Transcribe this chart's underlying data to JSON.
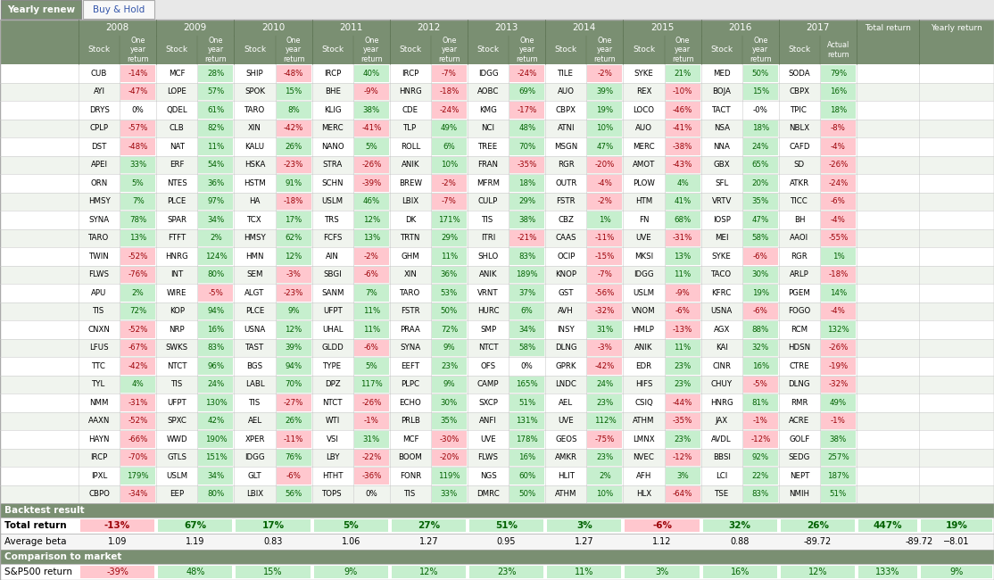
{
  "tab_yearly_renew": "Yearly renew",
  "tab_buy_hold": "Buy & Hold",
  "years": [
    "2008",
    "2009",
    "2010",
    "2011",
    "2012",
    "2013",
    "2014",
    "2015",
    "2016",
    "2017"
  ],
  "header_bg": "#7a8f72",
  "header_text": "#ffffff",
  "tab_active_bg": "#7a8f72",
  "tab_active_text": "#ffffff",
  "tab_inactive_bg": "#f0f0f0",
  "tab_inactive_text": "#3355aa",
  "section_bg": "#7a8f72",
  "section_text": "#ffffff",
  "positive_bg": "#c6efce",
  "negative_bg": "#ffc7ce",
  "positive_text": "#006100",
  "negative_text": "#9c0006",
  "neutral_text": "#000000",
  "row_bg_white": "#ffffff",
  "row_bg_gray": "#f0f4ee",
  "table_data": [
    [
      "CUB",
      "-14%",
      "MCF",
      "28%",
      "SHIP",
      "-48%",
      "IRCP",
      "40%",
      "IRCP",
      "-7%",
      "IDGG",
      "-24%",
      "TILE",
      "-2%",
      "SYKE",
      "21%",
      "MED",
      "50%",
      "SODA",
      "79%",
      "",
      ""
    ],
    [
      "AYI",
      "-47%",
      "LOPE",
      "57%",
      "SPOK",
      "15%",
      "BHE",
      "-9%",
      "HNRG",
      "-18%",
      "AOBC",
      "69%",
      "AUO",
      "39%",
      "REX",
      "-10%",
      "BOJA",
      "15%",
      "CBPX",
      "16%",
      "",
      ""
    ],
    [
      "DRYS",
      "0%",
      "QDEL",
      "61%",
      "TARO",
      "8%",
      "KLIG",
      "38%",
      "CDE",
      "-24%",
      "KMG",
      "-17%",
      "CBPX",
      "19%",
      "LOCO",
      "-46%",
      "TACT",
      "-0%",
      "TPIC",
      "18%",
      "",
      ""
    ],
    [
      "CPLP",
      "-57%",
      "CLB",
      "82%",
      "XIN",
      "-42%",
      "MERC",
      "-41%",
      "TLP",
      "49%",
      "NCI",
      "48%",
      "ATNI",
      "10%",
      "AUO",
      "-41%",
      "NSA",
      "18%",
      "NBLX",
      "-8%",
      "",
      ""
    ],
    [
      "DST",
      "-48%",
      "NAT",
      "11%",
      "KALU",
      "26%",
      "NANO",
      "5%",
      "ROLL",
      "6%",
      "TREE",
      "70%",
      "MSGN",
      "47%",
      "MERC",
      "-38%",
      "NNA",
      "24%",
      "CAFD",
      "-4%",
      "",
      ""
    ],
    [
      "APEI",
      "33%",
      "ERF",
      "54%",
      "HSKA",
      "-23%",
      "STRA",
      "-26%",
      "ANIK",
      "10%",
      "FRAN",
      "-35%",
      "RGR",
      "-20%",
      "AMOT",
      "-43%",
      "GBX",
      "65%",
      "SD",
      "-26%",
      "",
      ""
    ],
    [
      "ORN",
      "5%",
      "NTES",
      "36%",
      "HSTM",
      "91%",
      "SCHN",
      "-39%",
      "BREW",
      "-2%",
      "MFRM",
      "18%",
      "OUTR",
      "-4%",
      "PLOW",
      "4%",
      "SFL",
      "20%",
      "ATKR",
      "-24%",
      "",
      ""
    ],
    [
      "HMSY",
      "7%",
      "PLCE",
      "97%",
      "HA",
      "-18%",
      "USLM",
      "46%",
      "LBIX",
      "-7%",
      "CULP",
      "29%",
      "FSTR",
      "-2%",
      "HTM",
      "41%",
      "VRTV",
      "35%",
      "TICC",
      "-6%",
      "",
      ""
    ],
    [
      "SYNA",
      "78%",
      "SPAR",
      "34%",
      "TCX",
      "17%",
      "TRS",
      "12%",
      "DK",
      "171%",
      "TIS",
      "38%",
      "CBZ",
      "1%",
      "FN",
      "68%",
      "IOSP",
      "47%",
      "BH",
      "-4%",
      "",
      ""
    ],
    [
      "TARO",
      "13%",
      "FTFT",
      "2%",
      "HMSY",
      "62%",
      "FCFS",
      "13%",
      "TRTN",
      "29%",
      "ITRI",
      "-21%",
      "CAAS",
      "-11%",
      "UVE",
      "-31%",
      "MEI",
      "58%",
      "AAOI",
      "-55%",
      "",
      ""
    ],
    [
      "TWIN",
      "-52%",
      "HNRG",
      "124%",
      "HMN",
      "12%",
      "AIN",
      "-2%",
      "GHM",
      "11%",
      "SHLO",
      "83%",
      "OCIP",
      "-15%",
      "MKSI",
      "13%",
      "SYKE",
      "-6%",
      "RGR",
      "1%",
      "",
      ""
    ],
    [
      "FLWS",
      "-76%",
      "INT",
      "80%",
      "SEM",
      "-3%",
      "SBGI",
      "-6%",
      "XIN",
      "36%",
      "ANIK",
      "189%",
      "KNOP",
      "-7%",
      "IDGG",
      "11%",
      "TACO",
      "30%",
      "ARLP",
      "-18%",
      "",
      ""
    ],
    [
      "APU",
      "2%",
      "WIRE",
      "-5%",
      "ALGT",
      "-23%",
      "SANM",
      "7%",
      "TARO",
      "53%",
      "VRNT",
      "37%",
      "GST",
      "-56%",
      "USLM",
      "-9%",
      "KFRC",
      "19%",
      "PGEM",
      "14%",
      "",
      ""
    ],
    [
      "TIS",
      "72%",
      "KOP",
      "94%",
      "PLCE",
      "9%",
      "UFPT",
      "11%",
      "FSTR",
      "50%",
      "HURC",
      "6%",
      "AVH",
      "-32%",
      "VNOM",
      "-6%",
      "USNA",
      "-6%",
      "FOGO",
      "-4%",
      "",
      ""
    ],
    [
      "CNXN",
      "-52%",
      "NRP",
      "16%",
      "USNA",
      "12%",
      "UHAL",
      "11%",
      "PRAA",
      "72%",
      "SMP",
      "34%",
      "INSY",
      "31%",
      "HMLP",
      "-13%",
      "AGX",
      "88%",
      "RCM",
      "132%",
      "",
      ""
    ],
    [
      "LFUS",
      "-67%",
      "SWKS",
      "83%",
      "TAST",
      "39%",
      "GLDD",
      "-6%",
      "SYNA",
      "9%",
      "NTCT",
      "58%",
      "DLNG",
      "-3%",
      "ANIK",
      "11%",
      "KAI",
      "32%",
      "HDSN",
      "-26%",
      "",
      ""
    ],
    [
      "TTC",
      "-42%",
      "NTCT",
      "96%",
      "BGS",
      "94%",
      "TYPE",
      "5%",
      "EEFT",
      "23%",
      "OFS",
      "0%",
      "GPRK",
      "-42%",
      "EDR",
      "23%",
      "CINR",
      "16%",
      "CTRE",
      "-19%",
      "",
      ""
    ],
    [
      "TYL",
      "4%",
      "TIS",
      "24%",
      "LABL",
      "70%",
      "DPZ",
      "117%",
      "PLPC",
      "9%",
      "CAMP",
      "165%",
      "LNDC",
      "24%",
      "HIFS",
      "23%",
      "CHUY",
      "-5%",
      "DLNG",
      "-32%",
      "",
      ""
    ],
    [
      "NMM",
      "-31%",
      "UFPT",
      "130%",
      "TIS",
      "-27%",
      "NTCT",
      "-26%",
      "ECHO",
      "30%",
      "SXCP",
      "51%",
      "AEL",
      "23%",
      "CSIQ",
      "-44%",
      "HNRG",
      "81%",
      "RMR",
      "49%",
      "",
      ""
    ],
    [
      "AAXN",
      "-52%",
      "SPXC",
      "42%",
      "AEL",
      "26%",
      "WTI",
      "-1%",
      "PRLB",
      "35%",
      "ANFI",
      "131%",
      "UVE",
      "112%",
      "ATHM",
      "-35%",
      "JAX",
      "-1%",
      "ACRE",
      "-1%",
      "",
      ""
    ],
    [
      "HAYN",
      "-66%",
      "WWD",
      "190%",
      "XPER",
      "-11%",
      "VSI",
      "31%",
      "MCF",
      "-30%",
      "UVE",
      "178%",
      "GEOS",
      "-75%",
      "LMNX",
      "23%",
      "AVDL",
      "-12%",
      "GOLF",
      "38%",
      "",
      ""
    ],
    [
      "IRCP",
      "-70%",
      "GTLS",
      "151%",
      "IDGG",
      "76%",
      "LBY",
      "-22%",
      "BOOM",
      "-20%",
      "FLWS",
      "16%",
      "AMKR",
      "23%",
      "NVEC",
      "-12%",
      "BBSI",
      "92%",
      "SEDG",
      "257%",
      "",
      ""
    ],
    [
      "IPXL",
      "179%",
      "USLM",
      "34%",
      "GLT",
      "-6%",
      "HTHT",
      "-36%",
      "FONR",
      "119%",
      "NGS",
      "60%",
      "HLIT",
      "2%",
      "AFH",
      "3%",
      "LCI",
      "22%",
      "NEPT",
      "187%",
      "",
      ""
    ],
    [
      "CBPO",
      "-34%",
      "EEP",
      "80%",
      "LBIX",
      "56%",
      "TOPS",
      "0%",
      "TIS",
      "33%",
      "DMRC",
      "50%",
      "ATHM",
      "10%",
      "HLX",
      "-64%",
      "TSE",
      "83%",
      "NMIH",
      "51%",
      "",
      ""
    ]
  ],
  "total_return": [
    "-13%",
    "67%",
    "17%",
    "5%",
    "27%",
    "51%",
    "3%",
    "-6%",
    "32%",
    "26%",
    "447%",
    "19%"
  ],
  "average_beta": [
    "1.09",
    "1.19",
    "0.83",
    "1.06",
    "1.27",
    "0.95",
    "1.27",
    "1.12",
    "0.88",
    "-89.72",
    "",
    "−8.01"
  ],
  "sp500_return": [
    "-39%",
    "48%",
    "15%",
    "9%",
    "12%",
    "23%",
    "11%",
    "3%",
    "16%",
    "12%",
    "133%",
    "9%"
  ],
  "strikethrough_stocks": [
    "NTES",
    "SWKS",
    "KLIG",
    "IDGG",
    "OUTR",
    "MFRM",
    "IDGG"
  ]
}
